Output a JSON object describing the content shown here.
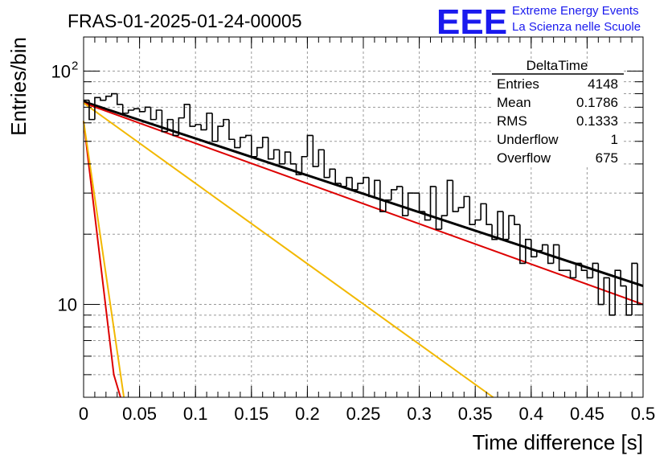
{
  "header": {
    "run_title": "FRAS-01-2025-01-24-00005",
    "logo_text": "EEE",
    "logo_line1": "Extreme Energy Events",
    "logo_line2": "La Scienza nelle Scuole"
  },
  "stats": {
    "title": "DeltaTime",
    "rows": [
      {
        "label": "Entries",
        "value": "4148"
      },
      {
        "label": "Mean",
        "value": "0.1786"
      },
      {
        "label": "RMS",
        "value": "0.1333"
      },
      {
        "label": "Underflow",
        "value": "1"
      },
      {
        "label": "Overflow",
        "value": "675"
      }
    ]
  },
  "colors": {
    "histogram": "#000000",
    "fit_total": "#000000",
    "fit_red": "#dd0000",
    "fit_orange": "#f2b800",
    "grid": "#999999",
    "logo": "#1a1aee"
  },
  "chart_data": {
    "type": "line",
    "xlabel": "Time difference [s]",
    "ylabel": "Entries/bin",
    "xlim": [
      0,
      0.5
    ],
    "ylim": [
      4,
      140
    ],
    "yscale": "log",
    "grid": true,
    "x_ticks": [
      "0",
      "0.05",
      "0.1",
      "0.15",
      "0.2",
      "0.25",
      "0.3",
      "0.35",
      "0.4",
      "0.45",
      "0.5"
    ],
    "y_ticks": [
      {
        "value": 10,
        "label": "10"
      },
      {
        "value": 100,
        "label": "10",
        "exp": "2"
      }
    ],
    "histogram": {
      "bin_width": 0.005,
      "values": [
        75,
        62,
        77,
        75,
        78,
        80,
        72,
        66,
        68,
        69,
        67,
        70,
        62,
        68,
        55,
        62,
        53,
        63,
        72,
        58,
        59,
        56,
        66,
        50,
        58,
        62,
        51,
        47,
        52,
        53,
        43,
        47,
        52,
        42,
        46,
        40,
        45,
        40,
        36,
        43,
        53,
        39,
        46,
        35,
        38,
        33,
        32,
        35,
        31,
        33,
        35,
        29,
        34,
        25,
        28,
        31,
        32,
        24,
        30,
        30,
        25,
        23,
        32,
        21,
        24,
        34,
        25,
        26,
        29,
        22,
        23,
        27,
        22,
        19,
        25,
        19,
        24,
        22,
        15,
        19,
        16,
        17,
        18,
        15,
        18,
        14,
        14,
        13,
        15,
        14,
        13,
        15,
        10,
        13,
        9,
        14,
        12,
        9,
        15,
        10
      ]
    },
    "series": [
      {
        "kind": "fit_total",
        "points": [
          [
            0,
            74
          ],
          [
            0.5,
            12
          ]
        ]
      },
      {
        "kind": "fit_red_slow",
        "points": [
          [
            0,
            73
          ],
          [
            0.5,
            10
          ]
        ]
      },
      {
        "kind": "fit_orange_slow",
        "points": [
          [
            0,
            73
          ],
          [
            0.366,
            4
          ]
        ]
      },
      {
        "kind": "fit_red_fast",
        "points": [
          [
            0,
            61
          ],
          [
            0.027,
            5
          ],
          [
            0.033,
            4
          ]
        ]
      },
      {
        "kind": "fit_orange_fast",
        "points": [
          [
            0,
            61
          ],
          [
            0.036,
            4
          ]
        ]
      }
    ]
  }
}
